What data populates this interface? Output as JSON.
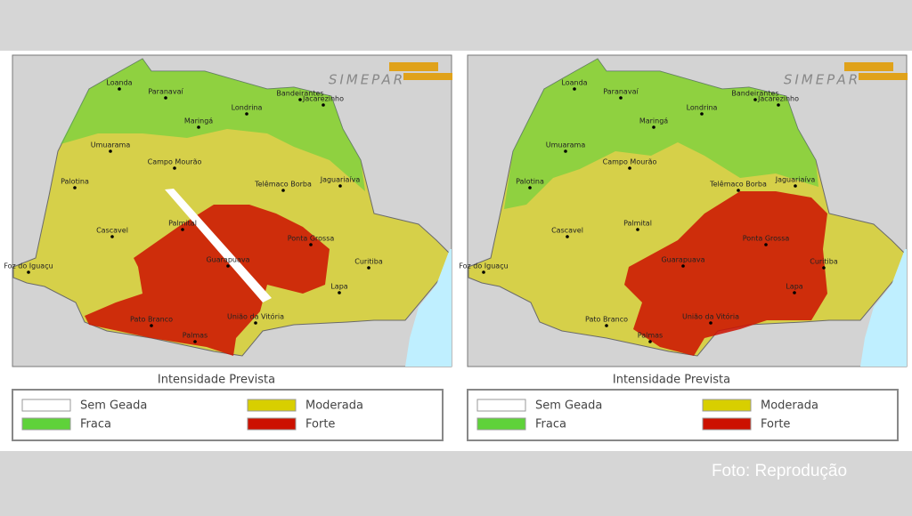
{
  "logo": "SIMEPAR",
  "cities": [
    "Loanda",
    "Paranavaí",
    "Maringá",
    "Londrina",
    "Bandeirantes",
    "Jacarezinho",
    "Umuarama",
    "Campo Mourão",
    "Palotina",
    "Telêmaco Borba",
    "Jaguariaíva",
    "Cascavel",
    "Palmital",
    "Ponta Grossa",
    "Guarapuava",
    "Curitiba",
    "Foz do Iguaçu",
    "Lapa",
    "Pato Branco",
    "União da Vitória",
    "Palmas"
  ],
  "legend": {
    "title": "Intensidade Prevista",
    "items": [
      {
        "label": "Sem Geada",
        "color": "#ffffff"
      },
      {
        "label": "Fraca",
        "color": "#5fd23a"
      },
      {
        "label": "Moderada",
        "color": "#d8cf00"
      },
      {
        "label": "Forte",
        "color": "#cc1100"
      }
    ]
  },
  "caption": "Foto: Reprodução"
}
